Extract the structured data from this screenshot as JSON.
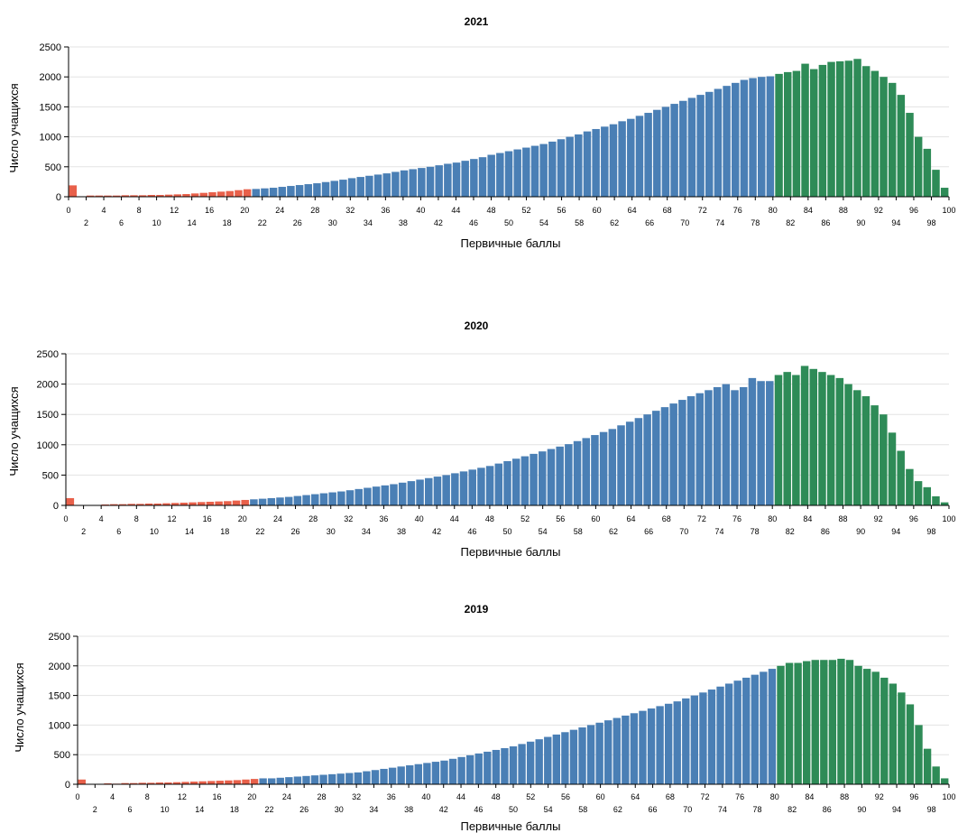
{
  "chart_data": [
    {
      "type": "bar",
      "title": "2021",
      "xlabel": "Первичные баллы",
      "ylabel": "Число учащихся",
      "ylim": [
        0,
        2500
      ],
      "xlim": [
        0,
        100
      ],
      "yticks": [
        0,
        500,
        1000,
        1500,
        2000,
        2500
      ],
      "xticks": [
        0,
        2,
        4,
        6,
        8,
        10,
        12,
        14,
        16,
        18,
        20,
        22,
        24,
        26,
        28,
        30,
        32,
        34,
        36,
        38,
        40,
        42,
        44,
        46,
        48,
        50,
        52,
        54,
        56,
        58,
        60,
        62,
        64,
        66,
        68,
        70,
        72,
        74,
        76,
        78,
        80,
        82,
        84,
        86,
        88,
        90,
        92,
        94,
        96,
        98,
        100
      ],
      "grid": true,
      "colors": {
        "fail": "#e8604a",
        "mid": "#4a7fb5",
        "high": "#2e8b57"
      },
      "x": [
        0,
        1,
        2,
        3,
        4,
        5,
        6,
        7,
        8,
        9,
        10,
        11,
        12,
        13,
        14,
        15,
        16,
        17,
        18,
        19,
        20,
        21,
        22,
        23,
        24,
        25,
        26,
        27,
        28,
        29,
        30,
        31,
        32,
        33,
        34,
        35,
        36,
        37,
        38,
        39,
        40,
        41,
        42,
        43,
        44,
        45,
        46,
        47,
        48,
        49,
        50,
        51,
        52,
        53,
        54,
        55,
        56,
        57,
        58,
        59,
        60,
        61,
        62,
        63,
        64,
        65,
        66,
        67,
        68,
        69,
        70,
        71,
        72,
        73,
        74,
        75,
        76,
        77,
        78,
        79,
        80,
        81,
        82,
        83,
        84,
        85,
        86,
        87,
        88,
        89,
        90,
        91,
        92,
        93,
        94,
        95,
        96,
        97,
        98,
        99,
        100
      ],
      "values": [
        190,
        0,
        20,
        20,
        20,
        20,
        25,
        25,
        25,
        30,
        30,
        35,
        40,
        45,
        55,
        65,
        75,
        85,
        95,
        110,
        125,
        130,
        140,
        150,
        165,
        180,
        195,
        210,
        225,
        245,
        265,
        285,
        310,
        330,
        350,
        370,
        390,
        415,
        440,
        460,
        480,
        500,
        525,
        550,
        570,
        600,
        630,
        660,
        700,
        730,
        760,
        790,
        820,
        850,
        880,
        920,
        960,
        1000,
        1040,
        1090,
        1130,
        1170,
        1210,
        1260,
        1300,
        1350,
        1400,
        1450,
        1500,
        1550,
        1600,
        1650,
        1700,
        1750,
        1800,
        1850,
        1900,
        1950,
        1980,
        2000,
        2010,
        2050,
        2080,
        2100,
        2220,
        2130,
        2200,
        2250,
        2260,
        2270,
        2300,
        2180,
        2100,
        2000,
        1900,
        1700,
        1400,
        1000,
        800,
        450,
        150
      ],
      "segments": [
        {
          "color": "fail",
          "from": 0,
          "to": 21
        },
        {
          "color": "mid",
          "from": 21,
          "to": 81
        },
        {
          "color": "high",
          "from": 81,
          "to": 100
        }
      ]
    },
    {
      "type": "bar",
      "title": "2020",
      "xlabel": "Первичные баллы",
      "ylabel": "Число учащихся",
      "ylim": [
        0,
        2500
      ],
      "xlim": [
        0,
        100
      ],
      "yticks": [
        0,
        500,
        1000,
        1500,
        2000,
        2500
      ],
      "xticks": [
        0,
        2,
        4,
        6,
        8,
        10,
        12,
        14,
        16,
        18,
        20,
        22,
        24,
        26,
        28,
        30,
        32,
        34,
        36,
        38,
        40,
        42,
        44,
        46,
        48,
        50,
        52,
        54,
        56,
        58,
        60,
        62,
        64,
        66,
        68,
        70,
        72,
        74,
        76,
        78,
        80,
        82,
        84,
        86,
        88,
        90,
        92,
        94,
        96,
        98,
        100
      ],
      "grid": true,
      "colors": {
        "fail": "#e8604a",
        "mid": "#4a7fb5",
        "high": "#2e8b57"
      },
      "x": [
        0,
        1,
        2,
        3,
        4,
        5,
        6,
        7,
        8,
        9,
        10,
        11,
        12,
        13,
        14,
        15,
        16,
        17,
        18,
        19,
        20,
        21,
        22,
        23,
        24,
        25,
        26,
        27,
        28,
        29,
        30,
        31,
        32,
        33,
        34,
        35,
        36,
        37,
        38,
        39,
        40,
        41,
        42,
        43,
        44,
        45,
        46,
        47,
        48,
        49,
        50,
        51,
        52,
        53,
        54,
        55,
        56,
        57,
        58,
        59,
        60,
        61,
        62,
        63,
        64,
        65,
        66,
        67,
        68,
        69,
        70,
        71,
        72,
        73,
        74,
        75,
        76,
        77,
        78,
        79,
        80,
        81,
        82,
        83,
        84,
        85,
        86,
        87,
        88,
        89,
        90,
        91,
        92,
        93,
        94,
        95,
        96,
        97,
        98,
        99,
        100
      ],
      "values": [
        120,
        0,
        0,
        0,
        15,
        20,
        20,
        25,
        25,
        30,
        30,
        35,
        40,
        45,
        50,
        55,
        60,
        65,
        70,
        80,
        90,
        100,
        110,
        120,
        130,
        140,
        155,
        170,
        185,
        200,
        215,
        230,
        250,
        270,
        290,
        310,
        330,
        350,
        375,
        400,
        425,
        450,
        475,
        500,
        530,
        560,
        590,
        620,
        650,
        690,
        730,
        770,
        810,
        850,
        890,
        930,
        970,
        1010,
        1060,
        1110,
        1160,
        1210,
        1260,
        1320,
        1380,
        1440,
        1500,
        1560,
        1620,
        1680,
        1740,
        1800,
        1850,
        1900,
        1950,
        2000,
        1900,
        1950,
        2100,
        2050,
        2050,
        2150,
        2200,
        2150,
        2300,
        2250,
        2200,
        2150,
        2100,
        2000,
        1900,
        1800,
        1650,
        1500,
        1200,
        900,
        600,
        400,
        300,
        150,
        50
      ],
      "segments": [
        {
          "color": "fail",
          "from": 0,
          "to": 21
        },
        {
          "color": "mid",
          "from": 21,
          "to": 81
        },
        {
          "color": "high",
          "from": 81,
          "to": 100
        }
      ]
    },
    {
      "type": "bar",
      "title": "2019",
      "xlabel": "Первичные баллы",
      "ylabel": "Число учащихся",
      "ylim": [
        0,
        2500
      ],
      "xlim": [
        0,
        100
      ],
      "yticks": [
        0,
        500,
        1000,
        1500,
        2000,
        2500
      ],
      "xticks": [
        0,
        2,
        4,
        6,
        8,
        10,
        12,
        14,
        16,
        18,
        20,
        22,
        24,
        26,
        28,
        30,
        32,
        34,
        36,
        38,
        40,
        42,
        44,
        46,
        48,
        50,
        52,
        54,
        56,
        58,
        60,
        62,
        64,
        66,
        68,
        70,
        72,
        74,
        76,
        78,
        80,
        82,
        84,
        86,
        88,
        90,
        92,
        94,
        96,
        98,
        100
      ],
      "grid": true,
      "colors": {
        "fail": "#e8604a",
        "mid": "#4a7fb5",
        "high": "#2e8b57"
      },
      "x": [
        0,
        1,
        2,
        3,
        4,
        5,
        6,
        7,
        8,
        9,
        10,
        11,
        12,
        13,
        14,
        15,
        16,
        17,
        18,
        19,
        20,
        21,
        22,
        23,
        24,
        25,
        26,
        27,
        28,
        29,
        30,
        31,
        32,
        33,
        34,
        35,
        36,
        37,
        38,
        39,
        40,
        41,
        42,
        43,
        44,
        45,
        46,
        47,
        48,
        49,
        50,
        51,
        52,
        53,
        54,
        55,
        56,
        57,
        58,
        59,
        60,
        61,
        62,
        63,
        64,
        65,
        66,
        67,
        68,
        69,
        70,
        71,
        72,
        73,
        74,
        75,
        76,
        77,
        78,
        79,
        80,
        81,
        82,
        83,
        84,
        85,
        86,
        87,
        88,
        89,
        90,
        91,
        92,
        93,
        94,
        95,
        96,
        97,
        98,
        99,
        100
      ],
      "values": [
        80,
        0,
        0,
        15,
        10,
        20,
        20,
        25,
        25,
        30,
        30,
        35,
        40,
        45,
        50,
        55,
        60,
        65,
        70,
        80,
        90,
        100,
        100,
        110,
        120,
        130,
        140,
        150,
        160,
        170,
        180,
        190,
        200,
        220,
        240,
        260,
        280,
        300,
        320,
        340,
        360,
        380,
        400,
        430,
        460,
        490,
        520,
        550,
        580,
        610,
        640,
        680,
        720,
        760,
        800,
        840,
        880,
        920,
        960,
        1000,
        1040,
        1080,
        1120,
        1160,
        1200,
        1240,
        1280,
        1320,
        1360,
        1400,
        1450,
        1500,
        1550,
        1600,
        1650,
        1700,
        1750,
        1800,
        1850,
        1900,
        1950,
        2000,
        2050,
        2050,
        2080,
        2100,
        2100,
        2100,
        2120,
        2100,
        2000,
        1950,
        1900,
        1800,
        1700,
        1550,
        1350,
        1000,
        600,
        300,
        100
      ],
      "segments": [
        {
          "color": "fail",
          "from": 0,
          "to": 21
        },
        {
          "color": "mid",
          "from": 21,
          "to": 81
        },
        {
          "color": "high",
          "from": 81,
          "to": 100
        }
      ]
    }
  ]
}
